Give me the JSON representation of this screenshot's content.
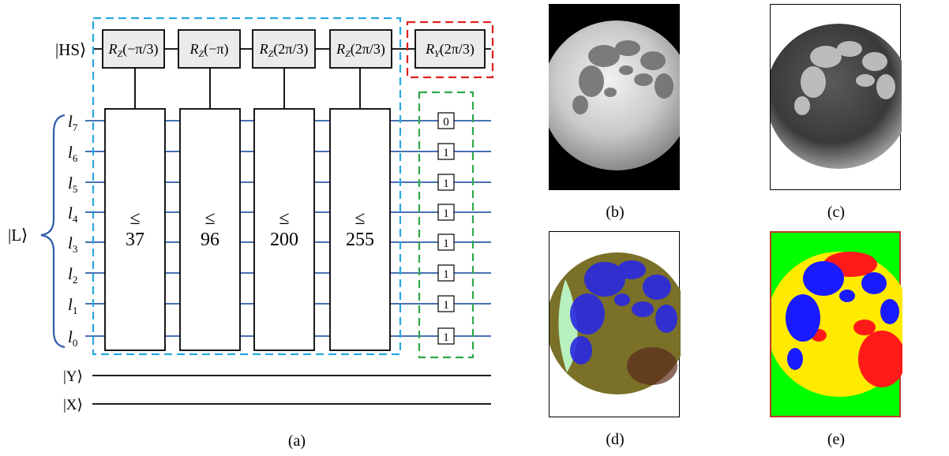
{
  "circuit": {
    "hs_label": "|HS⟩",
    "l_label": "|L⟩",
    "y_label": "|Y⟩",
    "x_label": "|X⟩",
    "qubit_letter": "l",
    "qubit_indices": [
      "7",
      "6",
      "5",
      "4",
      "3",
      "2",
      "1",
      "0"
    ],
    "rotation_gates": [
      {
        "axis": "Z",
        "angle": "−π/3"
      },
      {
        "axis": "Z",
        "angle": "−π"
      },
      {
        "axis": "Z",
        "angle": "2π/3"
      },
      {
        "axis": "Z",
        "angle": "2π/3"
      },
      {
        "axis": "Y",
        "angle": "2π/3"
      }
    ],
    "comparators": [
      {
        "symbol": "≤",
        "value": "37"
      },
      {
        "symbol": "≤",
        "value": "96"
      },
      {
        "symbol": "≤",
        "value": "200"
      },
      {
        "symbol": "≤",
        "value": "255"
      }
    ],
    "bit_values": [
      "0",
      "1",
      "1",
      "1",
      "1",
      "1",
      "1",
      "1"
    ],
    "box_colors": {
      "comparison": "#29a8e0",
      "rotation": "#e0211d",
      "bits": "#2ea84a",
      "wire": "#2e5da8",
      "gate_fill": "#ebebeb"
    }
  },
  "captions": {
    "a": "(a)",
    "b": "(b)",
    "c": "(c)",
    "d": "(d)",
    "e": "(e)"
  },
  "panel_colors": {
    "d_blue": "#2a2ae0",
    "d_olive": "#7a7028",
    "d_green": "#b8f0c0",
    "e_green": "#00ff00",
    "e_red": "#ff1a1a",
    "e_yellow": "#ffea00",
    "e_blue": "#1a1aff",
    "e_border": "#c0392b"
  }
}
